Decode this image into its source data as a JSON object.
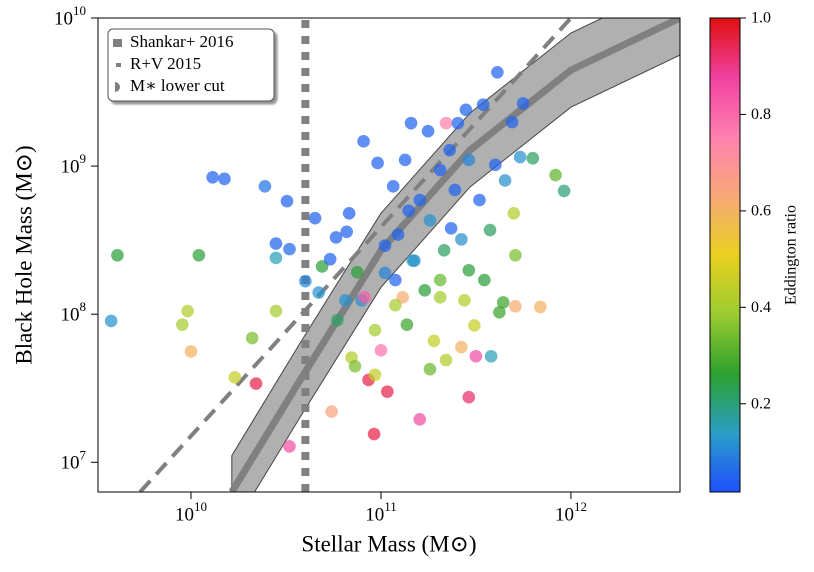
{
  "chart_data": {
    "type": "scatter",
    "xlabel": "Stellar Mass (M⊙)",
    "ylabel": "Black Hole Mass (M⊙)",
    "xlog": true,
    "ylog": true,
    "xlim": [
      3240000000.0,
      3750000000000.0
    ],
    "ylim": [
      6300000.0,
      10000000000.0
    ],
    "xticks": [
      {
        "value": 10000000000.0,
        "label": "10^10"
      },
      {
        "value": 100000000000.0,
        "label": "10^11"
      },
      {
        "value": 1000000000000.0,
        "label": "10^12"
      }
    ],
    "yticks": [
      {
        "value": 10000000.0,
        "label": "10^7"
      },
      {
        "value": 100000000.0,
        "label": "10^8"
      },
      {
        "value": 1000000000.0,
        "label": "10^9"
      },
      {
        "value": 10000000000.0,
        "label": "10^10"
      }
    ],
    "x": [
      3800000000.0,
      4100000000.0,
      9000000000.0,
      9600000000.0,
      10000000000.0,
      11000000000.0,
      13000000000.0,
      15000000000.0,
      17000000000.0,
      21000000000.0,
      22000000000.0,
      24500000000.0,
      28000000000.0,
      28000000000.0,
      28000000000.0,
      32000000000.0,
      33000000000.0,
      33000000000.0,
      40000000000.0,
      45000000000.0,
      47000000000.0,
      49000000000.0,
      55000000000.0,
      58000000000.0,
      59000000000.0,
      66000000000.0,
      68000000000.0,
      70000000000.0,
      73000000000.0,
      75000000000.0,
      79000000000.0,
      81000000000.0,
      82000000000.0,
      86000000000.0,
      92000000000.0,
      93000000000.0,
      96000000000.0,
      93000000000.0,
      100000000000.0,
      108000000000.0,
      105000000000.0,
      116000000000.0,
      123000000000.0,
      130000000000.0,
      137000000000.0,
      144000000000.0,
      147000000000.0,
      160000000000.0,
      181000000000.0,
      177000000000.0,
      190000000000.0,
      205000000000.0,
      215000000000.0,
      220000000000.0,
      220000000000.0,
      234000000000.0,
      254000000000.0,
      265000000000.0,
      280000000000.0,
      290000000000.0,
      316000000000.0,
      310000000000.0,
      345000000000.0,
      380000000000.0,
      410000000000.0,
      420000000000.0,
      440000000000.0,
      490000000000.0,
      510000000000.0,
      500000000000.0,
      510000000000.0,
      560000000000.0,
      540000000000.0,
      630000000000.0,
      690000000000.0,
      830000000000.0,
      920000000000.0,
      134000000000.0,
      160000000000.0,
      181000000000.0,
      205000000000.0,
      245000000000.0,
      265000000000.0,
      290000000000.0,
      330000000000.0,
      375000000000.0,
      400000000000.0,
      450000000000.0,
      150000000000.0,
      170000000000.0,
      119000000000.0,
      105000000000.0,
      230000000000.0,
      290000000000.0,
      350000000000.0,
      140000000000.0,
      205000000000.0,
      275000000000.0,
      119000000000.0,
      65000000000.0,
      54000000000.0
    ],
    "y": [
      90000000.0,
      250000000.0,
      85000000.0,
      105000000.0,
      56000000.0,
      250000000.0,
      840000000.0,
      820000000.0,
      37500000.0,
      69000000.0,
      34000000.0,
      730000000.0,
      300000000.0,
      240000000.0,
      105000000.0,
      580000000.0,
      275000000.0,
      12800000.0,
      167000000.0,
      445000000.0,
      140000000.0,
      210000000.0,
      22000000.0,
      330000000.0,
      91000000.0,
      360000000.0,
      480000000.0,
      51000000.0,
      44500000.0,
      192000000.0,
      124000000.0,
      1470000000.0,
      130000000.0,
      36000000.0,
      15500000.0,
      39000000.0,
      1050000000.0,
      78000000.0,
      57000000.0,
      30000000.0,
      190000000.0,
      730000000.0,
      345000000.0,
      130000000.0,
      85000000.0,
      1950000000.0,
      230000000.0,
      19500000.0,
      42500000.0,
      1720000000.0,
      66000000.0,
      130000000.0,
      270000000.0,
      49000000.0,
      1950000000.0,
      380000000.0,
      1950000000.0,
      60000000.0,
      2400000000.0,
      27500000.0,
      52000000.0,
      84000000.0,
      2600000000.0,
      52000000.0,
      4300000000.0,
      103000000.0,
      120000000.0,
      1980000000.0,
      250000000.0,
      480000000.0,
      113000000.0,
      2650000000.0,
      1150000000.0,
      1130000000.0,
      112000000.0,
      870000000.0,
      680000000.0,
      1100000000.0,
      590000000.0,
      430000000.0,
      940000000.0,
      690000000.0,
      320000000.0,
      198000000.0,
      590000000.0,
      370000000.0,
      1020000000.0,
      800000000.0,
      230000000.0,
      145000000.0,
      170000000.0,
      290000000.0,
      1280000000.0,
      1100000000.0,
      170000000.0,
      500000000.0,
      170000000.0,
      124000000.0,
      115000000.0,
      124000000.0,
      235000000.0
    ],
    "color_values": [
      0.12,
      0.25,
      0.4,
      0.42,
      0.6,
      0.25,
      0.05,
      0.05,
      0.45,
      0.35,
      0.95,
      0.07,
      0.05,
      0.15,
      0.4,
      0.05,
      0.06,
      0.85,
      0.1,
      0.05,
      0.12,
      0.25,
      0.65,
      0.05,
      0.22,
      0.05,
      0.04,
      0.42,
      0.35,
      0.25,
      0.12,
      0.05,
      0.82,
      0.95,
      0.95,
      0.45,
      0.05,
      0.4,
      0.78,
      0.95,
      0.1,
      0.05,
      0.05,
      0.62,
      0.28,
      0.05,
      0.15,
      0.85,
      0.33,
      0.05,
      0.45,
      0.4,
      0.22,
      0.42,
      0.75,
      0.05,
      0.05,
      0.6,
      0.05,
      0.92,
      0.85,
      0.45,
      0.05,
      0.15,
      0.05,
      0.28,
      0.28,
      0.05,
      0.35,
      0.42,
      0.62,
      0.05,
      0.12,
      0.22,
      0.6,
      0.32,
      0.2,
      0.05,
      0.05,
      0.12,
      0.05,
      0.05,
      0.12,
      0.25,
      0.05,
      0.22,
      0.05,
      0.12,
      0.12,
      0.25,
      0.05,
      0.05,
      0.05,
      0.1,
      0.25,
      0.05,
      0.33,
      0.42,
      0.4,
      0.12,
      0.05
    ],
    "colorbar": {
      "label": "Eddington ratio",
      "lim": [
        0.017,
        1.0
      ],
      "ticks": [
        0.2,
        0.4,
        0.6,
        0.8,
        {
          "value": 1.0,
          "label": "1.0"
        }
      ],
      "colormap": [
        "#1f4fff",
        "#2a9fc4",
        "#2ca02c",
        "#9ccc30",
        "#e8d020",
        "#f8a878",
        "#ff80b0",
        "#f040a0",
        "#e01010"
      ]
    },
    "lines": [
      {
        "name": "Shankar+ 2016",
        "style": "band",
        "color": "#808080",
        "x": [
          16400000000.0,
          37500000000.0,
          100000000000.0,
          294000000000.0,
          1000000000000.0,
          3750000000000.0
        ],
        "y": [
          6300000.0,
          35800000.0,
          270000000.0,
          1280000000.0,
          4450000000.0,
          10000000000.0
        ],
        "lower": [
          3520000.0,
          20100000.0,
          152000000.0,
          721000000.0,
          2500000000.0,
          5620000000.0
        ],
        "upper": [
          11100000.0,
          63700000.0,
          481000000.0,
          2280000000.0,
          7920000000.0,
          17800000000.0
        ]
      },
      {
        "name": "R+V 2015",
        "style": "dashed",
        "color": "#808080",
        "x": [
          5400000000.0,
          1000000000000.0
        ],
        "y": [
          6300000.0,
          10000000000.0
        ]
      },
      {
        "name": "M∗ lower cut",
        "style": "dotted",
        "color": "#808080",
        "x": [
          40000000000.0,
          40000000000.0
        ],
        "y": [
          6300000.0,
          10000000000.0
        ]
      }
    ],
    "legend": "upper left"
  }
}
